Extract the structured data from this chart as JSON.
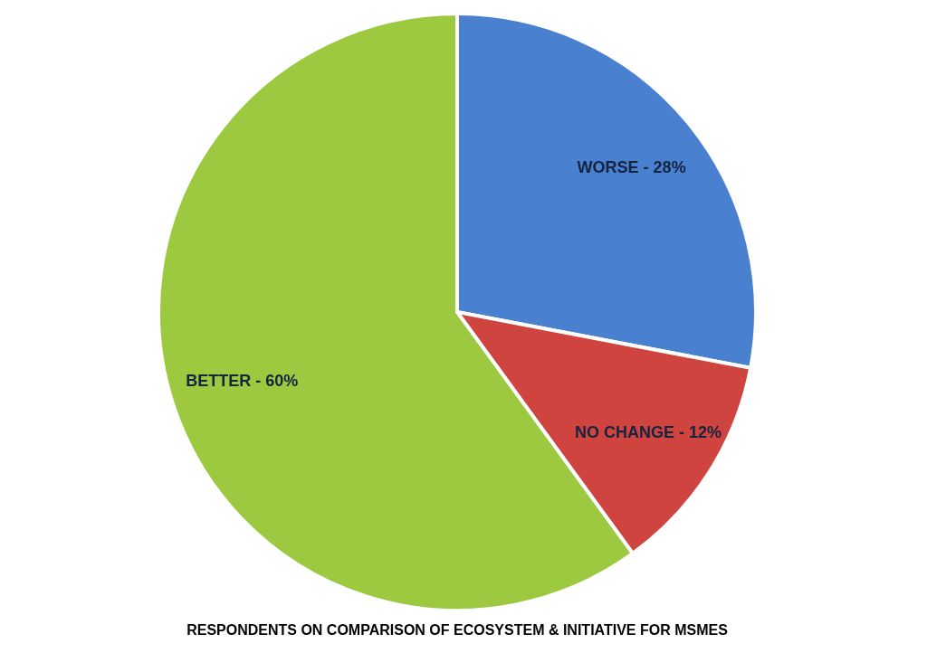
{
  "chart_data": {
    "type": "pie",
    "title": "RESPONDENTS ON COMPARISON OF ECOSYSTEM & INITIATIVE FOR MSMES",
    "categories": [
      "WORSE - 28%",
      "NO CHANGE - 12%",
      "BETTER - 60%"
    ],
    "values": [
      28,
      12,
      60
    ],
    "colors": [
      "#4a80d0",
      "#d04440",
      "#9cc940"
    ],
    "legend": false
  }
}
